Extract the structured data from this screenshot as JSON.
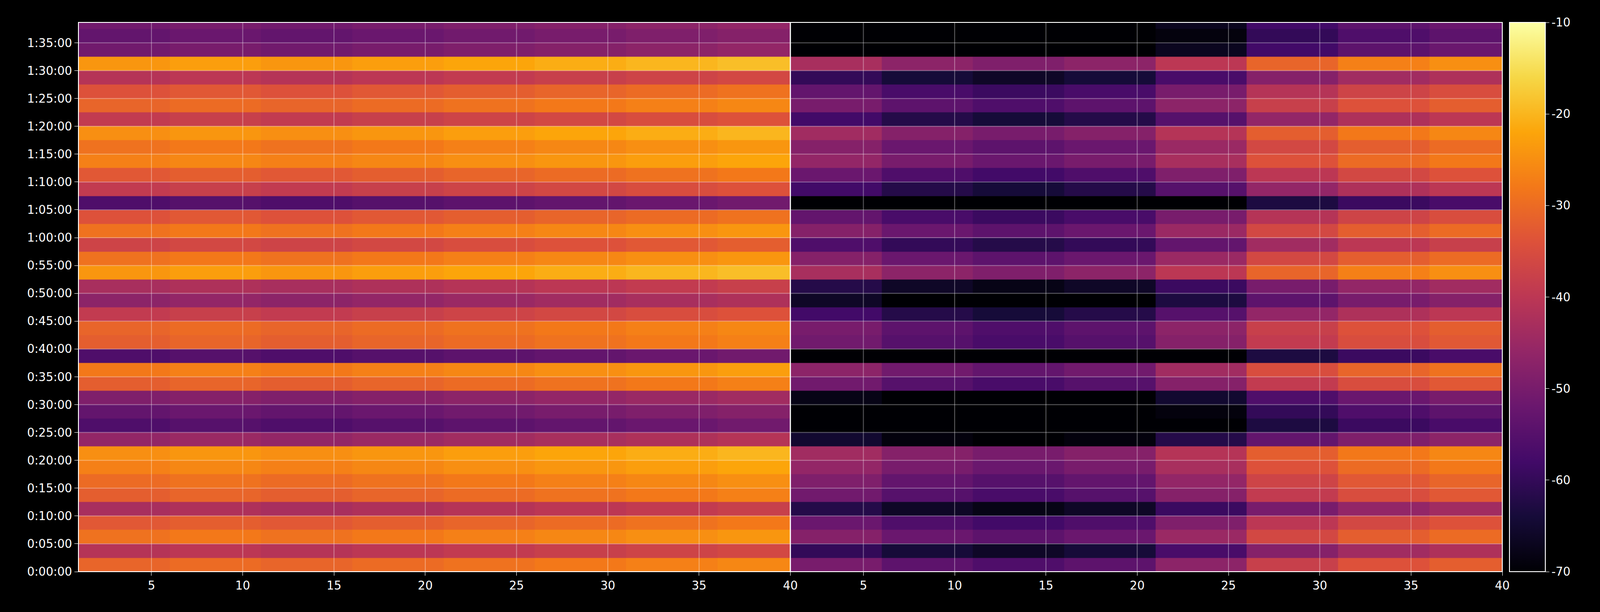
{
  "chart_data": [
    {
      "type": "heatmap",
      "color": "inferno",
      "grid": true,
      "tick_labels": true,
      "xlim": [
        1,
        40
      ],
      "xticks": [
        5,
        10,
        15,
        20,
        25,
        30,
        35,
        40
      ],
      "ylim": [
        0,
        5920
      ],
      "yticks": [
        {
          "value": 0,
          "label": "0:00:00"
        },
        {
          "value": 300,
          "label": "0:05:00"
        },
        {
          "value": 600,
          "label": "0:10:00"
        },
        {
          "value": 900,
          "label": "0:15:00"
        },
        {
          "value": 1200,
          "label": "0:20:00"
        },
        {
          "value": 1500,
          "label": "0:25:00"
        },
        {
          "value": 1800,
          "label": "0:30:00"
        },
        {
          "value": 2100,
          "label": "0:35:00"
        },
        {
          "value": 2400,
          "label": "0:40:00"
        },
        {
          "value": 2700,
          "label": "0:45:00"
        },
        {
          "value": 3000,
          "label": "0:50:00"
        },
        {
          "value": 3300,
          "label": "0:55:00"
        },
        {
          "value": 3600,
          "label": "1:00:00"
        },
        {
          "value": 3900,
          "label": "1:05:00"
        },
        {
          "value": 4200,
          "label": "1:10:00"
        },
        {
          "value": 4500,
          "label": "1:15:00"
        },
        {
          "value": 4800,
          "label": "1:20:00"
        },
        {
          "value": 5100,
          "label": "1:25:00"
        },
        {
          "value": 5400,
          "label": "1:30:00"
        },
        {
          "value": 5700,
          "label": "1:35:00"
        }
      ],
      "zlim": [
        -70,
        -10
      ],
      "x_edges": [
        1,
        6,
        11,
        16,
        21,
        26,
        31,
        36,
        40
      ],
      "y_edges": [
        0,
        150,
        300,
        450,
        600,
        750,
        900,
        1050,
        1200,
        1350,
        1500,
        1650,
        1800,
        1950,
        2100,
        2250,
        2400,
        2550,
        2700,
        2850,
        3000,
        3150,
        3300,
        3450,
        3600,
        3750,
        3900,
        4050,
        4200,
        4350,
        4500,
        4650,
        4800,
        4950,
        5100,
        5250,
        5400,
        5550,
        5700,
        5850,
        6000
      ],
      "cells": [
        [
          -31,
          -30,
          -31,
          -30,
          -29,
          -28,
          -27,
          -26
        ],
        [
          -41,
          -40,
          -41,
          -40,
          -39,
          -38,
          -37,
          -36
        ],
        [
          -29,
          -28,
          -29,
          -28,
          -27,
          -26,
          -25,
          -24
        ],
        [
          -33,
          -32,
          -33,
          -32,
          -31,
          -30,
          -29,
          -28
        ],
        [
          -43,
          -42,
          -43,
          -42,
          -41,
          -40,
          -39,
          -38
        ],
        [
          -32,
          -31,
          -32,
          -31,
          -30,
          -29,
          -28,
          -27
        ],
        [
          -30,
          -29,
          -30,
          -29,
          -28,
          -27,
          -26,
          -25
        ],
        [
          -27,
          -26,
          -27,
          -26,
          -25,
          -24,
          -23,
          -22
        ],
        [
          -25,
          -24,
          -25,
          -24,
          -23,
          -22,
          -21,
          -20
        ],
        [
          -46,
          -45,
          -46,
          -45,
          -44,
          -43,
          -42,
          -41
        ],
        [
          -56,
          -55,
          -56,
          -55,
          -54,
          -53,
          -52,
          -51
        ],
        [
          -53,
          -52,
          -53,
          -52,
          -51,
          -50,
          -49,
          -48
        ],
        [
          -49,
          -48,
          -49,
          -48,
          -47,
          -46,
          -45,
          -44
        ],
        [
          -32,
          -31,
          -32,
          -31,
          -30,
          -29,
          -28,
          -27
        ],
        [
          -28,
          -27,
          -28,
          -27,
          -26,
          -25,
          -24,
          -23
        ],
        [
          -56,
          -55,
          -56,
          -55,
          -54,
          -53,
          -52,
          -51
        ],
        [
          -32,
          -31,
          -32,
          -31,
          -30,
          -29,
          -28,
          -27
        ],
        [
          -31,
          -30,
          -31,
          -30,
          -29,
          -28,
          -27,
          -26
        ],
        [
          -39,
          -38,
          -39,
          -38,
          -37,
          -36,
          -35,
          -34
        ],
        [
          -47,
          -46,
          -47,
          -46,
          -45,
          -44,
          -43,
          -42
        ],
        [
          -43,
          -42,
          -43,
          -42,
          -41,
          -40,
          -39,
          -38
        ],
        [
          -24,
          -23,
          -24,
          -23,
          -22,
          -21,
          -20,
          -19
        ],
        [
          -29,
          -28,
          -29,
          -28,
          -27,
          -26,
          -25,
          -24
        ],
        [
          -37,
          -36,
          -37,
          -36,
          -35,
          -34,
          -33,
          -32
        ],
        [
          -29,
          -28,
          -29,
          -28,
          -27,
          -26,
          -25,
          -24
        ],
        [
          -34,
          -33,
          -34,
          -33,
          -32,
          -31,
          -30,
          -29
        ],
        [
          -56,
          -55,
          -56,
          -55,
          -54,
          -53,
          -52,
          -51
        ],
        [
          -39,
          -38,
          -39,
          -38,
          -37,
          -36,
          -35,
          -34
        ],
        [
          -33,
          -32,
          -33,
          -32,
          -31,
          -30,
          -29,
          -28
        ],
        [
          -27,
          -26,
          -27,
          -26,
          -25,
          -24,
          -23,
          -22
        ],
        [
          -29,
          -28,
          -29,
          -28,
          -27,
          -26,
          -25,
          -24
        ],
        [
          -25,
          -24,
          -25,
          -24,
          -23,
          -22,
          -21,
          -20
        ],
        [
          -39,
          -38,
          -39,
          -38,
          -37,
          -36,
          -35,
          -34
        ],
        [
          -31,
          -30,
          -31,
          -30,
          -29,
          -28,
          -27,
          -26
        ],
        [
          -34,
          -33,
          -34,
          -33,
          -32,
          -31,
          -30,
          -29
        ],
        [
          -41,
          -40,
          -41,
          -40,
          -39,
          -38,
          -37,
          -36
        ],
        [
          -24,
          -23,
          -24,
          -23,
          -22,
          -21,
          -20,
          -19
        ],
        [
          -51,
          -50,
          -51,
          -50,
          -49,
          -48,
          -47,
          -46
        ],
        [
          -53,
          -52,
          -53,
          -52,
          -51,
          -50,
          -49,
          -48
        ],
        [
          -51,
          -50,
          -51,
          -50,
          -49,
          -48,
          -47,
          -46
        ]
      ]
    },
    {
      "type": "heatmap",
      "color": "inferno",
      "grid": true,
      "tick_labels": "x",
      "xlim": [
        1,
        40
      ],
      "xticks": [
        5,
        10,
        15,
        20,
        25,
        30,
        35,
        40
      ],
      "ylim": [
        0,
        5920
      ],
      "zlim": [
        -70,
        -10
      ],
      "colorbar_ticks": [
        -70,
        -60,
        -50,
        -40,
        -30,
        -20,
        -10
      ],
      "x_edges": [
        1,
        6,
        11,
        16,
        21,
        26,
        31,
        36,
        40
      ],
      "y_edges": [
        0,
        150,
        300,
        450,
        600,
        750,
        900,
        1050,
        1200,
        1350,
        1500,
        1650,
        1800,
        1950,
        2100,
        2250,
        2400,
        2550,
        2700,
        2850,
        3000,
        3150,
        3300,
        3450,
        3600,
        3750,
        3900,
        4050,
        4200,
        4350,
        4500,
        4650,
        4800,
        4950,
        5100,
        5250,
        5400,
        5550,
        5700,
        5850,
        6000
      ],
      "cells": [
        [
          -50,
          -54,
          -56,
          -54,
          -47,
          -38,
          -34,
          -32
        ],
        [
          -60,
          -64,
          -66,
          -64,
          -57,
          -48,
          -44,
          -42
        ],
        [
          -48,
          -52,
          -54,
          -52,
          -45,
          -36,
          -32,
          -30
        ],
        [
          -52,
          -56,
          -58,
          -56,
          -49,
          -40,
          -36,
          -34
        ],
        [
          -62,
          -66,
          -68,
          -66,
          -59,
          -50,
          -46,
          -44
        ],
        [
          -51,
          -55,
          -57,
          -55,
          -48,
          -39,
          -35,
          -33
        ],
        [
          -49,
          -53,
          -55,
          -53,
          -46,
          -37,
          -33,
          -31
        ],
        [
          -46,
          -50,
          -52,
          -50,
          -43,
          -34,
          -30,
          -28
        ],
        [
          -44,
          -48,
          -50,
          -48,
          -41,
          -32,
          -28,
          -26
        ],
        [
          -65,
          -69,
          -70,
          -69,
          -62,
          -53,
          -49,
          -47
        ],
        [
          -70,
          -70,
          -70,
          -70,
          -70,
          -63,
          -59,
          -57
        ],
        [
          -70,
          -70,
          -70,
          -70,
          -69,
          -60,
          -56,
          -54
        ],
        [
          -68,
          -70,
          -70,
          -70,
          -65,
          -56,
          -52,
          -50
        ],
        [
          -51,
          -55,
          -57,
          -55,
          -48,
          -39,
          -35,
          -33
        ],
        [
          -47,
          -51,
          -53,
          -51,
          -44,
          -35,
          -31,
          -29
        ],
        [
          -70,
          -70,
          -70,
          -70,
          -70,
          -63,
          -59,
          -57
        ],
        [
          -51,
          -55,
          -57,
          -55,
          -48,
          -39,
          -35,
          -33
        ],
        [
          -50,
          -54,
          -56,
          -54,
          -47,
          -38,
          -34,
          -32
        ],
        [
          -58,
          -62,
          -64,
          -62,
          -55,
          -46,
          -42,
          -40
        ],
        [
          -66,
          -70,
          -70,
          -70,
          -63,
          -54,
          -50,
          -48
        ],
        [
          -62,
          -66,
          -68,
          -66,
          -59,
          -50,
          -46,
          -44
        ],
        [
          -43,
          -47,
          -49,
          -47,
          -40,
          -31,
          -27,
          -25
        ],
        [
          -48,
          -52,
          -54,
          -52,
          -45,
          -36,
          -32,
          -30
        ],
        [
          -56,
          -60,
          -62,
          -60,
          -53,
          -44,
          -40,
          -38
        ],
        [
          -48,
          -52,
          -54,
          -52,
          -45,
          -36,
          -32,
          -30
        ],
        [
          -53,
          -57,
          -59,
          -57,
          -50,
          -41,
          -37,
          -35
        ],
        [
          -70,
          -70,
          -70,
          -70,
          -70,
          -63,
          -59,
          -57
        ],
        [
          -58,
          -62,
          -64,
          -62,
          -55,
          -46,
          -42,
          -40
        ],
        [
          -52,
          -56,
          -58,
          -56,
          -49,
          -40,
          -36,
          -34
        ],
        [
          -46,
          -50,
          -52,
          -50,
          -43,
          -34,
          -30,
          -28
        ],
        [
          -48,
          -52,
          -54,
          -52,
          -45,
          -36,
          -32,
          -30
        ],
        [
          -44,
          -48,
          -50,
          -48,
          -41,
          -32,
          -28,
          -26
        ],
        [
          -58,
          -62,
          -64,
          -62,
          -55,
          -46,
          -42,
          -40
        ],
        [
          -50,
          -54,
          -56,
          -54,
          -47,
          -38,
          -34,
          -32
        ],
        [
          -53,
          -57,
          -59,
          -57,
          -50,
          -41,
          -37,
          -35
        ],
        [
          -60,
          -64,
          -66,
          -64,
          -57,
          -48,
          -44,
          -42
        ],
        [
          -43,
          -47,
          -49,
          -47,
          -40,
          -31,
          -27,
          -25
        ],
        [
          -70,
          -70,
          -70,
          -70,
          -67,
          -58,
          -54,
          -52
        ],
        [
          -70,
          -70,
          -70,
          -70,
          -69,
          -60,
          -56,
          -54
        ],
        [
          -70,
          -70,
          -70,
          -70,
          -67,
          -58,
          -54,
          -52
        ]
      ]
    }
  ]
}
